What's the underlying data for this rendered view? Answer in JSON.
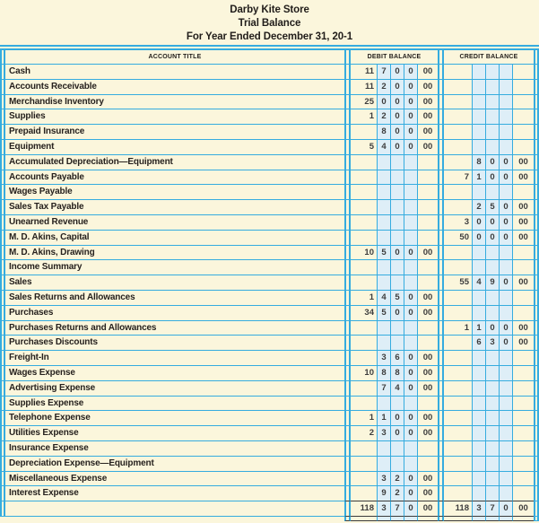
{
  "colors": {
    "page_background": "#FBF6DC",
    "rule_cyan": "#35ACDF",
    "digit_column_tint": "#DEEEF7",
    "text_dark": "#26211e",
    "totals_rule_dark": "#3b3b3b"
  },
  "heading": {
    "company": "Darby Kite Store",
    "report": "Trial Balance",
    "period": "For Year Ended December 31, 20-1"
  },
  "table": {
    "columns": {
      "account_title": "ACCOUNT TITLE",
      "debit": "DEBIT BALANCE",
      "credit": "CREDIT BALANCE"
    },
    "rows": [
      {
        "title": "Cash",
        "debit": [
          "11",
          "7",
          "0",
          "0",
          "00"
        ],
        "credit": [
          "",
          "",
          "",
          "",
          ""
        ]
      },
      {
        "title": "Accounts Receivable",
        "debit": [
          "11",
          "2",
          "0",
          "0",
          "00"
        ],
        "credit": [
          "",
          "",
          "",
          "",
          ""
        ]
      },
      {
        "title": "Merchandise Inventory",
        "debit": [
          "25",
          "0",
          "0",
          "0",
          "00"
        ],
        "credit": [
          "",
          "",
          "",
          "",
          ""
        ]
      },
      {
        "title": "Supplies",
        "debit": [
          "1",
          "2",
          "0",
          "0",
          "00"
        ],
        "credit": [
          "",
          "",
          "",
          "",
          ""
        ]
      },
      {
        "title": "Prepaid Insurance",
        "debit": [
          "",
          "8",
          "0",
          "0",
          "00"
        ],
        "credit": [
          "",
          "",
          "",
          "",
          ""
        ]
      },
      {
        "title": "Equipment",
        "debit": [
          "5",
          "4",
          "0",
          "0",
          "00"
        ],
        "credit": [
          "",
          "",
          "",
          "",
          ""
        ]
      },
      {
        "title": "Accumulated Depreciation—Equipment",
        "debit": [
          "",
          "",
          "",
          "",
          ""
        ],
        "credit": [
          "",
          "8",
          "0",
          "0",
          "00"
        ]
      },
      {
        "title": "Accounts Payable",
        "debit": [
          "",
          "",
          "",
          "",
          ""
        ],
        "credit": [
          "7",
          "1",
          "0",
          "0",
          "00"
        ]
      },
      {
        "title": "Wages Payable",
        "debit": [
          "",
          "",
          "",
          "",
          ""
        ],
        "credit": [
          "",
          "",
          "",
          "",
          ""
        ]
      },
      {
        "title": "Sales Tax Payable",
        "debit": [
          "",
          "",
          "",
          "",
          ""
        ],
        "credit": [
          "",
          "2",
          "5",
          "0",
          "00"
        ]
      },
      {
        "title": "Unearned Revenue",
        "debit": [
          "",
          "",
          "",
          "",
          ""
        ],
        "credit": [
          "3",
          "0",
          "0",
          "0",
          "00"
        ]
      },
      {
        "title": "M. D. Akins, Capital",
        "debit": [
          "",
          "",
          "",
          "",
          ""
        ],
        "credit": [
          "50",
          "0",
          "0",
          "0",
          "00"
        ]
      },
      {
        "title": "M. D. Akins, Drawing",
        "debit": [
          "10",
          "5",
          "0",
          "0",
          "00"
        ],
        "credit": [
          "",
          "",
          "",
          "",
          ""
        ]
      },
      {
        "title": "Income Summary",
        "debit": [
          "",
          "",
          "",
          "",
          ""
        ],
        "credit": [
          "",
          "",
          "",
          "",
          ""
        ]
      },
      {
        "title": "Sales",
        "debit": [
          "",
          "",
          "",
          "",
          ""
        ],
        "credit": [
          "55",
          "4",
          "9",
          "0",
          "00"
        ]
      },
      {
        "title": "Sales Returns and Allowances",
        "debit": [
          "1",
          "4",
          "5",
          "0",
          "00"
        ],
        "credit": [
          "",
          "",
          "",
          "",
          ""
        ]
      },
      {
        "title": "Purchases",
        "debit": [
          "34",
          "5",
          "0",
          "0",
          "00"
        ],
        "credit": [
          "",
          "",
          "",
          "",
          ""
        ]
      },
      {
        "title": "Purchases Returns and Allowances",
        "debit": [
          "",
          "",
          "",
          "",
          ""
        ],
        "credit": [
          "1",
          "1",
          "0",
          "0",
          "00"
        ]
      },
      {
        "title": "Purchases Discounts",
        "debit": [
          "",
          "",
          "",
          "",
          ""
        ],
        "credit": [
          "",
          "6",
          "3",
          "0",
          "00"
        ]
      },
      {
        "title": "Freight-In",
        "debit": [
          "",
          "3",
          "6",
          "0",
          "00"
        ],
        "credit": [
          "",
          "",
          "",
          "",
          ""
        ]
      },
      {
        "title": "Wages Expense",
        "debit": [
          "10",
          "8",
          "8",
          "0",
          "00"
        ],
        "credit": [
          "",
          "",
          "",
          "",
          ""
        ]
      },
      {
        "title": "Advertising Expense",
        "debit": [
          "",
          "7",
          "4",
          "0",
          "00"
        ],
        "credit": [
          "",
          "",
          "",
          "",
          ""
        ]
      },
      {
        "title": "Supplies Expense",
        "debit": [
          "",
          "",
          "",
          "",
          ""
        ],
        "credit": [
          "",
          "",
          "",
          "",
          ""
        ]
      },
      {
        "title": "Telephone Expense",
        "debit": [
          "1",
          "1",
          "0",
          "0",
          "00"
        ],
        "credit": [
          "",
          "",
          "",
          "",
          ""
        ]
      },
      {
        "title": "Utilities Expense",
        "debit": [
          "2",
          "3",
          "0",
          "0",
          "00"
        ],
        "credit": [
          "",
          "",
          "",
          "",
          ""
        ]
      },
      {
        "title": "Insurance Expense",
        "debit": [
          "",
          "",
          "",
          "",
          ""
        ],
        "credit": [
          "",
          "",
          "",
          "",
          ""
        ]
      },
      {
        "title": "Depreciation Expense—Equipment",
        "debit": [
          "",
          "",
          "",
          "",
          ""
        ],
        "credit": [
          "",
          "",
          "",
          "",
          ""
        ]
      },
      {
        "title": "Miscellaneous Expense",
        "debit": [
          "",
          "3",
          "2",
          "0",
          "00"
        ],
        "credit": [
          "",
          "",
          "",
          "",
          ""
        ]
      },
      {
        "title": "Interest Expense",
        "debit": [
          "",
          "9",
          "2",
          "0",
          "00"
        ],
        "credit": [
          "",
          "",
          "",
          "",
          ""
        ]
      },
      {
        "title": "",
        "debit": [
          "118",
          "3",
          "7",
          "0",
          "00"
        ],
        "credit": [
          "118",
          "3",
          "7",
          "0",
          "00"
        ]
      }
    ]
  }
}
